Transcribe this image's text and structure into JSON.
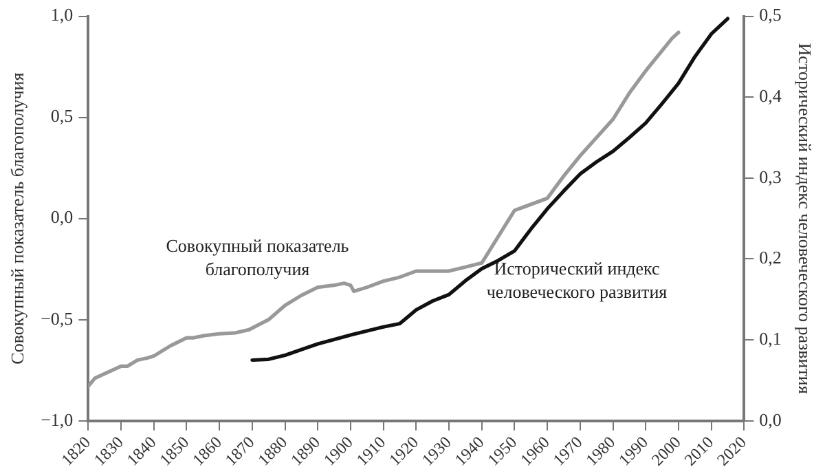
{
  "chart_data": {
    "type": "line",
    "ylabel": "Совокупный показатель благополучия",
    "y2label": "Исторический индекс человеческого развития",
    "xlim": [
      1820,
      2020
    ],
    "xticks": [
      1820,
      1830,
      1840,
      1850,
      1860,
      1870,
      1880,
      1890,
      1900,
      1910,
      1920,
      1930,
      1940,
      1950,
      1960,
      1970,
      1980,
      1990,
      2000,
      2010,
      2020
    ],
    "ylim": [
      -1,
      1
    ],
    "yticks": [
      {
        "value": -1,
        "label": "−1,0"
      },
      {
        "value": -0.5,
        "label": "−0,5"
      },
      {
        "value": 0,
        "label": "0,0"
      },
      {
        "value": 0.5,
        "label": "0,5"
      },
      {
        "value": 1,
        "label": "1,0"
      }
    ],
    "y2lim": [
      0,
      0.5
    ],
    "y2ticks": [
      {
        "value": 0,
        "label": "0,0"
      },
      {
        "value": 0.1,
        "label": "0,1"
      },
      {
        "value": 0.2,
        "label": "0,2"
      },
      {
        "value": 0.3,
        "label": "0,3"
      },
      {
        "value": 0.4,
        "label": "0,4"
      },
      {
        "value": 0.5,
        "label": "0,5"
      }
    ],
    "grid": false,
    "legend": false,
    "marker": "none",
    "line_style": "solid",
    "series": [
      {
        "color": "#999999",
        "axis": "y",
        "x": [
          1820,
          1822,
          1830,
          1832,
          1835,
          1838,
          1840,
          1845,
          1850,
          1852,
          1855,
          1860,
          1865,
          1869,
          1875,
          1880,
          1885,
          1890,
          1895,
          1898,
          1900,
          1901,
          1905,
          1910,
          1915,
          1920,
          1930,
          1935,
          1940,
          1950,
          1960,
          1965,
          1970,
          1975,
          1980,
          1985,
          1990,
          1995,
          1998,
          2000
        ],
        "values": [
          -0.83,
          -0.79,
          -0.73,
          -0.73,
          -0.7,
          -0.69,
          -0.68,
          -0.63,
          -0.59,
          -0.59,
          -0.58,
          -0.57,
          -0.565,
          -0.55,
          -0.5,
          -0.43,
          -0.38,
          -0.34,
          -0.33,
          -0.32,
          -0.33,
          -0.36,
          -0.34,
          -0.31,
          -0.29,
          -0.26,
          -0.26,
          -0.24,
          -0.22,
          0.04,
          0.1,
          0.21,
          0.31,
          0.4,
          0.49,
          0.62,
          0.73,
          0.83,
          0.89,
          0.92
        ]
      },
      {
        "color": "#111111",
        "axis": "y2",
        "x": [
          1870,
          1875,
          1880,
          1890,
          1900,
          1910,
          1915,
          1920,
          1925,
          1930,
          1935,
          1940,
          1945,
          1950,
          1955,
          1960,
          1965,
          1970,
          1975,
          1980,
          1985,
          1990,
          1995,
          2000,
          2005,
          2010,
          2015
        ],
        "values": [
          0.075,
          0.076,
          0.081,
          0.095,
          0.106,
          0.116,
          0.12,
          0.137,
          0.148,
          0.156,
          0.173,
          0.188,
          0.198,
          0.21,
          0.237,
          0.262,
          0.284,
          0.305,
          0.32,
          0.333,
          0.35,
          0.368,
          0.392,
          0.417,
          0.45,
          0.478,
          0.497
        ]
      }
    ],
    "annotations": [
      "Совокупный показатель\nблагополучия",
      "Исторический индекс\nчеловеческого развития"
    ]
  }
}
